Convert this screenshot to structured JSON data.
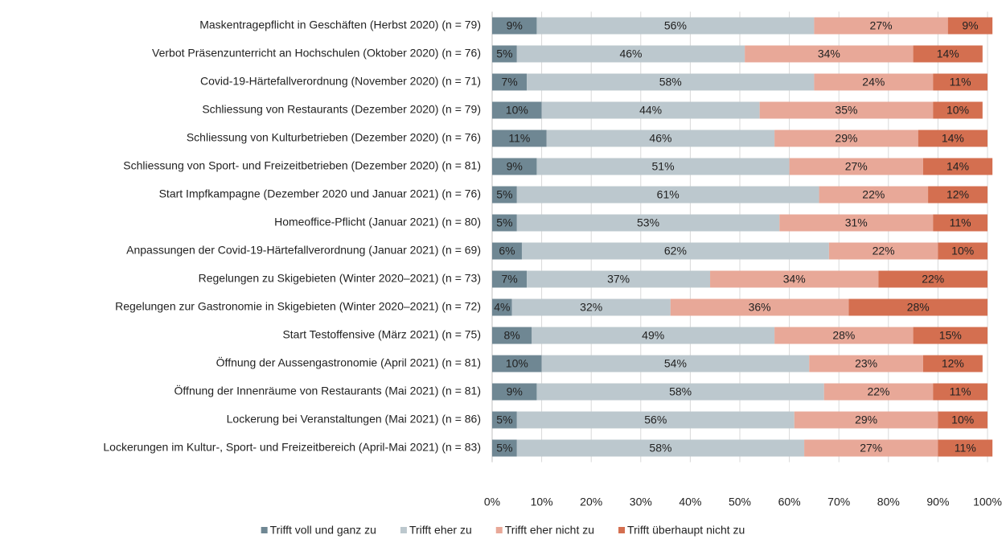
{
  "chart_data": {
    "type": "stacked-bar-horizontal",
    "categories": [
      "Maskentragepflicht in Geschäften (Herbst 2020) (n = 79)",
      "Verbot Präsenzunterricht an Hochschulen (Oktober 2020) (n = 76)",
      "Covid-19-Härtefallverordnung (November 2020) (n = 71)",
      "Schliessung von Restaurants (Dezember 2020) (n = 79)",
      "Schliessung von Kulturbetrieben (Dezember 2020) (n = 76)",
      "Schliessung von Sport- und Freizeitbetrieben (Dezember 2020) (n = 81)",
      "Start Impfkampagne (Dezember 2020 und Januar 2021) (n = 76)",
      "Homeoffice-Pflicht (Januar 2021) (n = 80)",
      "Anpassungen der Covid-19-Härtefallverordnung (Januar 2021) (n = 69)",
      "Regelungen zu Skigebieten (Winter 2020–2021) (n = 73)",
      "Regelungen zur Gastronomie in Skigebieten (Winter 2020–2021) (n = 72)",
      "Start Testoffensive (März 2021) (n = 75)",
      "Öffnung der Aussengastronomie (April 2021) (n = 81)",
      "Öffnung der Innenräume von Restaurants (Mai 2021) (n = 81)",
      "Lockerung bei Veranstaltungen (Mai 2021) (n = 86)",
      "Lockerungen im Kultur-, Sport- und Freizeitbereich (April-Mai 2021) (n = 83)"
    ],
    "series": [
      {
        "name": "Trifft voll und ganz zu",
        "color": "#6f8793",
        "values": [
          9,
          5,
          7,
          10,
          11,
          9,
          5,
          5,
          6,
          7,
          4,
          8,
          10,
          9,
          5,
          5
        ],
        "value_labels": [
          "9%",
          "5%",
          "7%",
          "10%",
          "11%",
          "9%",
          "5%",
          "5%",
          "6%",
          "7%",
          "4%",
          "8%",
          "10%",
          "9%",
          "5%",
          "5%"
        ]
      },
      {
        "name": "Trifft eher zu",
        "color": "#bcc8ce",
        "values": [
          56,
          46,
          58,
          44,
          46,
          51,
          61,
          53,
          62,
          37,
          32,
          49,
          54,
          58,
          56,
          58
        ],
        "value_labels": [
          "56%",
          "46%",
          "58%",
          "44%",
          "46%",
          "51%",
          "61%",
          "53%",
          "62%",
          "37%",
          "32%",
          "49%",
          "54%",
          "58%",
          "56%",
          "58%"
        ]
      },
      {
        "name": "Trifft eher nicht zu",
        "color": "#e8a898",
        "values": [
          27,
          34,
          24,
          35,
          29,
          27,
          22,
          31,
          22,
          34,
          36,
          28,
          23,
          22,
          29,
          27
        ],
        "value_labels": [
          "27%",
          "34%",
          "24%",
          "35%",
          "29%",
          "27%",
          "22%",
          "31%",
          "22%",
          "34%",
          "36%",
          "28%",
          "23%",
          "22%",
          "29%",
          "27%"
        ]
      },
      {
        "name": "Trifft überhaupt nicht zu",
        "color": "#d46f50",
        "values": [
          9,
          14,
          11,
          10,
          14,
          14,
          12,
          11,
          10,
          22,
          28,
          15,
          12,
          11,
          10,
          11
        ],
        "value_labels": [
          "9%",
          "14%",
          "11%",
          "10%",
          "14%",
          "14%",
          "12%",
          "11%",
          "10%",
          "22%",
          "28%",
          "15%",
          "12%",
          "11%",
          "10%",
          "11%"
        ]
      }
    ],
    "xlim": [
      0,
      100
    ],
    "xticks": [
      {
        "value": 0,
        "label": "0%"
      },
      {
        "value": 10,
        "label": "10%"
      },
      {
        "value": 20,
        "label": "20%"
      },
      {
        "value": 30,
        "label": "30%"
      },
      {
        "value": 40,
        "label": "40%"
      },
      {
        "value": 50,
        "label": "50%"
      },
      {
        "value": 60,
        "label": "60%"
      },
      {
        "value": 70,
        "label": "70%"
      },
      {
        "value": 80,
        "label": "80%"
      },
      {
        "value": 90,
        "label": "90%"
      },
      {
        "value": 100,
        "label": "100%"
      }
    ],
    "grid": true,
    "legend": "bottom"
  }
}
